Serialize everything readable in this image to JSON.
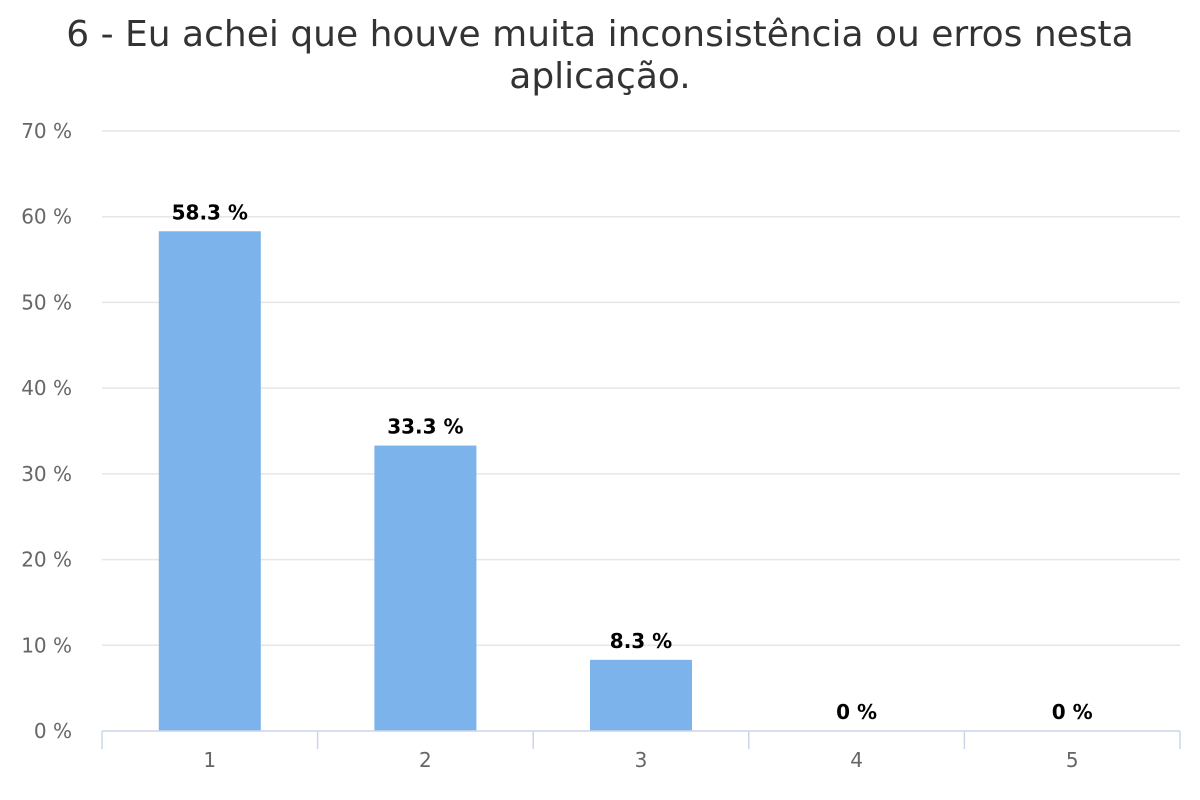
{
  "chart_data": {
    "type": "bar",
    "title": "6 - Eu achei que houve muita inconsistência ou erros nesta aplicação.",
    "categories": [
      "1",
      "2",
      "3",
      "4",
      "5"
    ],
    "values": [
      58.3,
      33.3,
      8.3,
      0,
      0
    ],
    "data_labels": [
      "58.3 %",
      "33.3 %",
      "8.3 %",
      "0 %",
      "0 %"
    ],
    "xlabel": "",
    "ylabel": "",
    "ylim": [
      0,
      70
    ],
    "yticks": [
      0,
      10,
      20,
      30,
      40,
      50,
      60,
      70
    ],
    "ytick_labels": [
      "0 %",
      "10 %",
      "20 %",
      "30 %",
      "40 %",
      "50 %",
      "60 %",
      "70 %"
    ],
    "grid": true,
    "legend": "none",
    "bar_color": "#7cb3ea"
  }
}
